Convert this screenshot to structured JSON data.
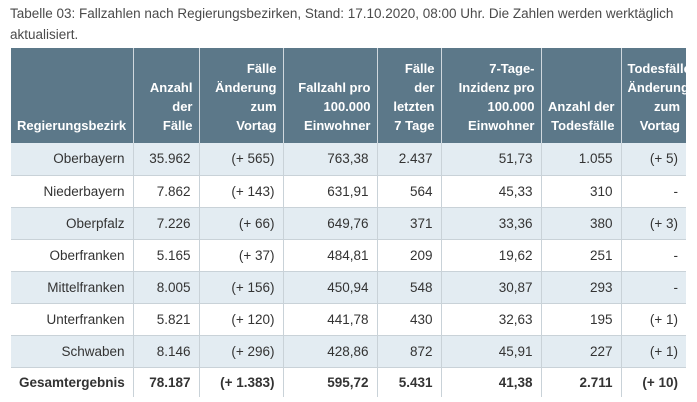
{
  "caption": "Tabelle 03: Fallzahlen nach Regierungsbezirken, Stand: 17.10.2020, 08:00 Uhr. Die Zahlen werden werktäglich aktualisiert.",
  "table": {
    "headers": {
      "col0": [
        "Regierungsbezirk"
      ],
      "col1": [
        "Anzahl",
        "der",
        "Fälle"
      ],
      "col2": [
        "Fälle",
        "Änderung",
        "zum",
        "Vortag"
      ],
      "col3": [
        "Fallzahl pro",
        "100.000",
        "Einwohner"
      ],
      "col4": [
        "Fälle",
        "der",
        "letzten",
        "7 Tage"
      ],
      "col5": [
        "7-Tage-",
        "Inzidenz pro",
        "100.000",
        "Einwohner"
      ],
      "col6": [
        "Anzahl der",
        "Todesfälle"
      ],
      "col7": [
        "Todesfälle",
        "Änderung",
        "zum Vortag"
      ]
    },
    "rows": [
      [
        "Oberbayern",
        "35.962",
        "(+ 565)",
        "763,38",
        "2.437",
        "51,73",
        "1.055",
        "(+ 5)"
      ],
      [
        "Niederbayern",
        "7.862",
        "(+ 143)",
        "631,91",
        "564",
        "45,33",
        "310",
        "-"
      ],
      [
        "Oberpfalz",
        "7.226",
        "(+ 66)",
        "649,76",
        "371",
        "33,36",
        "380",
        "(+ 3)"
      ],
      [
        "Oberfranken",
        "5.165",
        "(+ 37)",
        "484,81",
        "209",
        "19,62",
        "251",
        "-"
      ],
      [
        "Mittelfranken",
        "8.005",
        "(+ 156)",
        "450,94",
        "548",
        "30,87",
        "293",
        "-"
      ],
      [
        "Unterfranken",
        "5.821",
        "(+ 120)",
        "441,78",
        "430",
        "32,63",
        "195",
        "(+ 1)"
      ],
      [
        "Schwaben",
        "8.146",
        "(+ 296)",
        "428,86",
        "872",
        "45,91",
        "227",
        "(+ 1)"
      ]
    ],
    "total": [
      "Gesamtergebnis",
      "78.187",
      "(+ 1.383)",
      "595,72",
      "5.431",
      "41,38",
      "2.711",
      "(+ 10)"
    ]
  },
  "colors": {
    "header_bg": "#5c7889",
    "stripe_bg": "#e3ecf2"
  }
}
